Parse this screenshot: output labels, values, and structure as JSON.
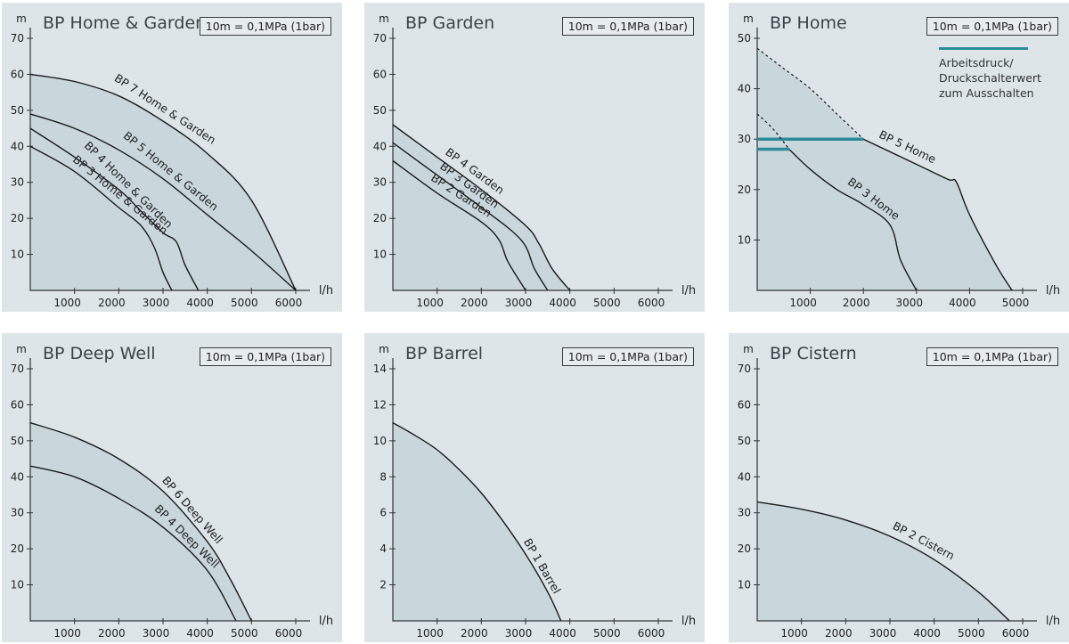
{
  "colors": {
    "panel_bg": "#dde5e8",
    "fill": "#c9d7dd",
    "curve": "#1a1a1a",
    "accent": "#2d8a98"
  },
  "chart_data": [
    {
      "type": "line",
      "title": "BP Home & Garden",
      "note": "10m = 0,1MPa (1bar)",
      "ylabel": "m",
      "xlabel": "l/h",
      "xlim": [
        0,
        6000
      ],
      "ylim": [
        0,
        70
      ],
      "xticks": [
        1000,
        2000,
        3000,
        4000,
        5000,
        6000
      ],
      "yticks": [
        10,
        20,
        30,
        40,
        50,
        60,
        70
      ],
      "series": [
        {
          "name": "BP 7 Home & Garden",
          "points": [
            [
              0,
              60
            ],
            [
              1000,
              58
            ],
            [
              2000,
              54
            ],
            [
              3000,
              47
            ],
            [
              4000,
              38
            ],
            [
              5000,
              25
            ],
            [
              6000,
              0
            ]
          ]
        },
        {
          "name": "BP 5 Home & Garden",
          "points": [
            [
              0,
              49
            ],
            [
              1000,
              45
            ],
            [
              2000,
              39
            ],
            [
              3000,
              31
            ],
            [
              4000,
              21
            ],
            [
              5000,
              11
            ],
            [
              6000,
              0
            ]
          ]
        },
        {
          "name": "BP 4 Home & Garden",
          "points": [
            [
              0,
              45
            ],
            [
              1000,
              37
            ],
            [
              2000,
              28
            ],
            [
              2500,
              22
            ],
            [
              3000,
              16
            ],
            [
              3300,
              13.5
            ],
            [
              3500,
              7
            ],
            [
              3800,
              0
            ]
          ]
        },
        {
          "name": "BP 3 Home & Garden",
          "points": [
            [
              0,
              40
            ],
            [
              1000,
              33
            ],
            [
              2000,
              23
            ],
            [
              2500,
              18
            ],
            [
              2800,
              12
            ],
            [
              3000,
              5
            ],
            [
              3200,
              0
            ]
          ]
        }
      ]
    },
    {
      "type": "line",
      "title": "BP Garden",
      "note": "10m = 0,1MPa (1bar)",
      "ylabel": "m",
      "xlabel": "l/h",
      "xlim": [
        0,
        6000
      ],
      "ylim": [
        0,
        70
      ],
      "xticks": [
        1000,
        2000,
        3000,
        4000,
        5000,
        6000
      ],
      "yticks": [
        10,
        20,
        30,
        40,
        50,
        60,
        70
      ],
      "series": [
        {
          "name": "BP 4 Garden",
          "points": [
            [
              0,
              46
            ],
            [
              1000,
              37
            ],
            [
              2000,
              28
            ],
            [
              3000,
              18
            ],
            [
              3300,
              13
            ],
            [
              3600,
              6
            ],
            [
              4000,
              0
            ]
          ]
        },
        {
          "name": "BP 3 Garden",
          "points": [
            [
              0,
              41
            ],
            [
              1000,
              32
            ],
            [
              2000,
              23
            ],
            [
              2900,
              14
            ],
            [
              3200,
              6
            ],
            [
              3500,
              0
            ]
          ]
        },
        {
          "name": "BP 2 Garden",
          "points": [
            [
              0,
              36
            ],
            [
              1000,
              27
            ],
            [
              2000,
              19
            ],
            [
              2400,
              14
            ],
            [
              2600,
              8
            ],
            [
              3000,
              0
            ]
          ]
        }
      ]
    },
    {
      "type": "line",
      "title": "BP Home",
      "note": "10m = 0,1MPa (1bar)",
      "legend_label": "Arbeitsdruck/ Druckschalterwert zum Ausschalten",
      "ylabel": "m",
      "xlabel": "l/h",
      "xlim": [
        0,
        5000
      ],
      "ylim": [
        0,
        50
      ],
      "xticks": [
        1000,
        2000,
        3000,
        4000,
        5000
      ],
      "yticks": [
        10,
        20,
        30,
        40,
        50
      ],
      "series": [
        {
          "name": "BP 5 Home",
          "points": [
            [
              0,
              48
            ],
            [
              500,
              44
            ],
            [
              1000,
              40
            ],
            [
              1500,
              35
            ],
            [
              2000,
              30
            ],
            [
              3000,
              25
            ],
            [
              3600,
              22
            ],
            [
              3750,
              21.5
            ],
            [
              4000,
              15
            ],
            [
              4500,
              5
            ],
            [
              4800,
              0
            ]
          ],
          "dashed_until_x": 2000,
          "cutoff_y": 30
        },
        {
          "name": "BP 3 Home",
          "points": [
            [
              0,
              35
            ],
            [
              300,
              32
            ],
            [
              600,
              28
            ],
            [
              1000,
              24
            ],
            [
              1500,
              20
            ],
            [
              2000,
              17
            ],
            [
              2500,
              13
            ],
            [
              2700,
              6
            ],
            [
              3000,
              0
            ]
          ],
          "dashed_until_x": 600,
          "cutoff_y": 28
        }
      ]
    },
    {
      "type": "line",
      "title": "BP Deep Well",
      "note": "10m = 0,1MPa (1bar)",
      "ylabel": "m",
      "xlabel": "l/h",
      "xlim": [
        0,
        6000
      ],
      "ylim": [
        0,
        70
      ],
      "xticks": [
        1000,
        2000,
        3000,
        4000,
        5000,
        6000
      ],
      "yticks": [
        10,
        20,
        30,
        40,
        50,
        60,
        70
      ],
      "series": [
        {
          "name": "BP 6 Deep Well",
          "points": [
            [
              0,
              55
            ],
            [
              1000,
              51
            ],
            [
              2000,
              45
            ],
            [
              3000,
              36
            ],
            [
              4000,
              22
            ],
            [
              4500,
              12
            ],
            [
              5000,
              0
            ]
          ]
        },
        {
          "name": "BP 4 Deep Well",
          "points": [
            [
              0,
              43
            ],
            [
              1000,
              40
            ],
            [
              2000,
              34
            ],
            [
              3000,
              26
            ],
            [
              4000,
              14
            ],
            [
              4650,
              0
            ]
          ]
        }
      ]
    },
    {
      "type": "line",
      "title": "BP Barrel",
      "note": "10m = 0,1MPa (1bar)",
      "ylabel": "m",
      "xlabel": "l/h",
      "xlim": [
        0,
        6000
      ],
      "ylim": [
        0,
        14
      ],
      "xticks": [
        1000,
        2000,
        3000,
        4000,
        5000,
        6000
      ],
      "yticks": [
        2,
        4,
        6,
        8,
        10,
        12,
        14
      ],
      "series": [
        {
          "name": "BP 1 Barrel",
          "points": [
            [
              0,
              11
            ],
            [
              500,
              10.3
            ],
            [
              1000,
              9.5
            ],
            [
              1500,
              8.4
            ],
            [
              2000,
              7.1
            ],
            [
              2500,
              5.5
            ],
            [
              3000,
              3.7
            ],
            [
              3500,
              1.6
            ],
            [
              3800,
              0
            ]
          ]
        }
      ]
    },
    {
      "type": "line",
      "title": "BP Cistern",
      "note": "10m = 0,1MPa (1bar)",
      "ylabel": "m",
      "xlabel": "l/h",
      "xlim": [
        0,
        6000
      ],
      "ylim": [
        0,
        70
      ],
      "xticks": [
        1000,
        2000,
        3000,
        4000,
        5000,
        6000
      ],
      "yticks": [
        10,
        20,
        30,
        40,
        50,
        60,
        70
      ],
      "series": [
        {
          "name": "BP 2 Cistern",
          "points": [
            [
              0,
              33
            ],
            [
              1000,
              31
            ],
            [
              2000,
              28
            ],
            [
              3000,
              23.5
            ],
            [
              4000,
              17
            ],
            [
              5000,
              8
            ],
            [
              5700,
              0
            ]
          ]
        }
      ]
    }
  ]
}
